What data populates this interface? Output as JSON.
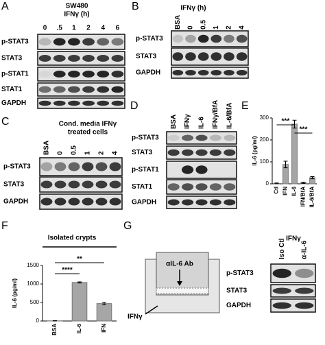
{
  "panels": {
    "A": {
      "label": "A",
      "title": "SW480",
      "subtitle": "IFNγ (h)",
      "lanes": [
        "0",
        ".5",
        "1",
        "2",
        "4",
        "6"
      ],
      "rows": [
        "p-STAT3",
        "STAT3",
        "p-STAT1",
        "STAT1",
        "GAPDH"
      ]
    },
    "B": {
      "label": "B",
      "subtitle": "IFNγ (h)",
      "lanes": [
        "BSA",
        "0",
        "0.5",
        "1",
        "2",
        "4"
      ],
      "rows": [
        "p-STAT3",
        "STAT3",
        "GAPDH"
      ]
    },
    "C": {
      "label": "C",
      "title": "Cond. media IFNγ",
      "subtitle": "treated cells",
      "lanes": [
        "BSA",
        "0",
        "0.5",
        "1",
        "2",
        "4"
      ],
      "rows": [
        "p-STAT3",
        "STAT3",
        "GAPDH"
      ]
    },
    "D": {
      "label": "D",
      "lanes": [
        "BSA",
        "IFNγ",
        "IL-6",
        "IFNγ/BfA",
        "IL-6/BfA"
      ],
      "rows": [
        "p-STAT3",
        "STAT3",
        "p-STAT1",
        "STAT1",
        "GAPDH"
      ]
    },
    "G": {
      "label": "G",
      "diagram": {
        "antibody": "αIL-6 Ab",
        "stimulus": "IFNγ"
      },
      "subtitle": "IFNγ",
      "lanes": [
        "Iso Ctl",
        "α-IL-6"
      ],
      "rows": [
        "p-STAT3",
        "STAT3",
        "GAPDH"
      ]
    }
  },
  "chart_data": [
    {
      "type": "bar",
      "panel": "E",
      "ylabel": "IL-6 (pg/ml)",
      "categories": [
        "Ctl",
        "IFN",
        "IL-6",
        "IFN/BfA",
        "IL-6/BfA"
      ],
      "values": [
        2,
        88,
        272,
        5,
        28
      ],
      "errors": [
        2,
        15,
        18,
        3,
        5
      ],
      "ylim": [
        0,
        300
      ],
      "yticks": [
        0,
        100,
        200,
        300
      ],
      "color": "#a6a6a6",
      "annotations": [
        "***",
        "***"
      ]
    },
    {
      "type": "bar",
      "panel": "F",
      "title": "Isolated crypts",
      "ylabel": "IL-6 (pg/ml)",
      "categories": [
        "BSA",
        "IL-6",
        "IFN"
      ],
      "values": [
        5,
        1040,
        470
      ],
      "errors": [
        5,
        15,
        35
      ],
      "ylim": [
        0,
        1500
      ],
      "yticks": [
        0,
        500,
        1000,
        1500
      ],
      "color": "#a6a6a6",
      "annotations": [
        "****",
        "**"
      ]
    }
  ]
}
